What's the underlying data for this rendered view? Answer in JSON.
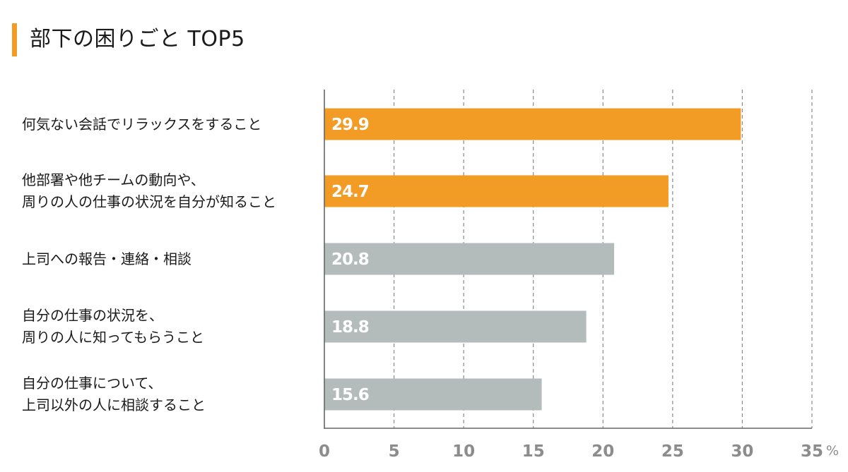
{
  "title": "部下の困りごと TOP5",
  "colors": {
    "accent": "#f39c25",
    "highlight_bar": "#f39c25",
    "normal_bar": "#b3bcbb",
    "grid": "#8a8a8a",
    "axis": "#666666",
    "tick_text": "#8c8c8c"
  },
  "chart_data": {
    "type": "bar",
    "orientation": "horizontal",
    "title": "部下の困りごと TOP5",
    "unit": "%",
    "categories": [
      [
        "何気ない会話でリラックスをすること"
      ],
      [
        "他部署や他チームの動向や、",
        "周りの人の仕事の状況を自分が知ること"
      ],
      [
        "上司への報告・連絡・相談"
      ],
      [
        "自分の仕事の状況を、",
        "周りの人に知ってもらうこと"
      ],
      [
        "自分の仕事について、",
        "上司以外の人に相談すること"
      ]
    ],
    "values": [
      29.9,
      24.7,
      20.8,
      18.8,
      15.6
    ],
    "value_labels": [
      "29.9",
      "24.7",
      "20.8",
      "18.8",
      "15.6"
    ],
    "highlighted": [
      true,
      true,
      false,
      false,
      false
    ],
    "xlim": [
      0,
      35
    ],
    "xticks": [
      0,
      5,
      10,
      15,
      20,
      25,
      30,
      35
    ],
    "grid": "vertical dashed",
    "legend": "none"
  }
}
